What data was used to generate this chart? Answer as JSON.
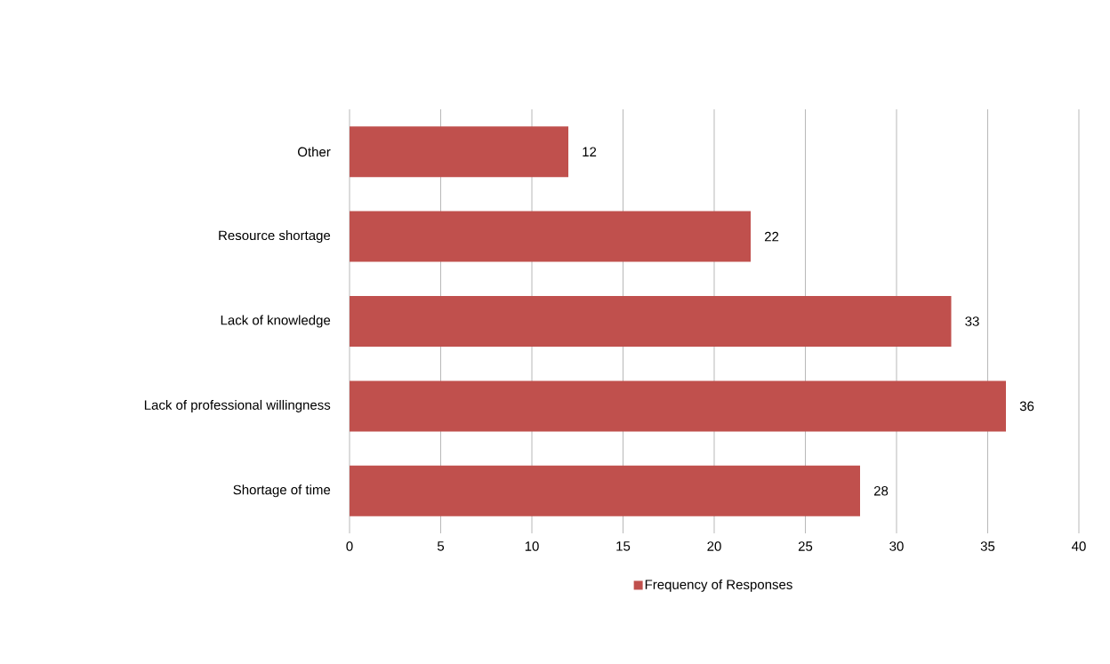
{
  "chart_data": {
    "type": "bar",
    "orientation": "horizontal",
    "categories": [
      "Other",
      "Resource shortage",
      "Lack of knowledge",
      "Lack of professional willingness",
      "Shortage of time"
    ],
    "series": [
      {
        "name": "Frequency of Responses",
        "color": "#c0504d",
        "values": [
          12,
          22,
          33,
          36,
          28
        ]
      }
    ],
    "xlim": [
      0,
      40
    ],
    "xticks": [
      0,
      5,
      10,
      15,
      20,
      25,
      30,
      35,
      40
    ],
    "grid": "x",
    "legend": "bottom",
    "data_labels": true
  }
}
